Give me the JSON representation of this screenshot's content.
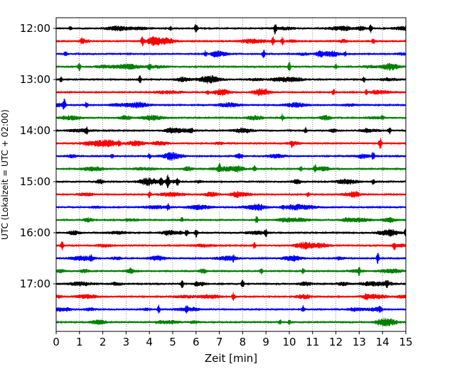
{
  "chart_data": {
    "type": "line",
    "title": "",
    "xlabel": "Zeit  [min]",
    "ylabel": "UTC (Lokalzeit = UTC + 02:00)",
    "xlim": [
      0,
      15
    ],
    "x_ticks": [
      "0",
      "1",
      "2",
      "3",
      "4",
      "5",
      "6",
      "7",
      "8",
      "9",
      "10",
      "11",
      "12",
      "13",
      "14",
      "15"
    ],
    "y_tick_labels": [
      "12:00",
      "13:00",
      "14:00",
      "15:00",
      "16:00",
      "17:00"
    ],
    "grid": "vertical-dotted",
    "colors": [
      "#000000",
      "#ff0000",
      "#0000ff",
      "#008000"
    ],
    "traces": [
      {
        "start": "12:00",
        "color": "#000000",
        "spikes": [
          [
            6.0,
            7
          ],
          [
            9.4,
            8
          ],
          [
            13.5,
            6
          ],
          [
            4.9,
            3
          ],
          [
            0.6,
            3
          ]
        ]
      },
      {
        "start": "12:15",
        "color": "#ff0000",
        "spikes": [
          [
            3.7,
            6
          ],
          [
            9.3,
            6
          ],
          [
            9.7,
            5
          ],
          [
            13.6,
            4
          ],
          [
            1.1,
            3
          ]
        ]
      },
      {
        "start": "12:30",
        "color": "#0000ff",
        "spikes": [
          [
            6.4,
            4
          ],
          [
            8.9,
            6
          ],
          [
            0.4,
            3
          ],
          [
            12.4,
            3
          ]
        ]
      },
      {
        "start": "12:45",
        "color": "#008000",
        "spikes": [
          [
            1.0,
            5
          ],
          [
            4.0,
            4
          ],
          [
            10.0,
            7
          ],
          [
            12.0,
            3
          ]
        ]
      },
      {
        "start": "13:00",
        "color": "#000000",
        "spikes": [
          [
            3.6,
            5
          ],
          [
            0.2,
            4
          ],
          [
            13.2,
            4
          ]
        ]
      },
      {
        "start": "13:15",
        "color": "#ff0000",
        "spikes": [
          [
            11.9,
            4
          ],
          [
            6.5,
            3
          ],
          [
            13.3,
            3
          ]
        ]
      },
      {
        "start": "13:30",
        "color": "#0000ff",
        "spikes": [
          [
            0.35,
            7
          ],
          [
            1.3,
            4
          ]
        ]
      },
      {
        "start": "13:45",
        "color": "#008000",
        "spikes": [
          [
            9.7,
            5
          ],
          [
            14.0,
            3
          ]
        ]
      },
      {
        "start": "14:00",
        "color": "#000000",
        "spikes": [
          [
            1.3,
            4
          ],
          [
            5.8,
            4
          ],
          [
            10.7,
            4
          ],
          [
            14.3,
            5
          ]
        ]
      },
      {
        "start": "14:15",
        "color": "#ff0000",
        "spikes": [
          [
            13.9,
            8
          ],
          [
            10.1,
            3
          ],
          [
            2.7,
            3
          ]
        ]
      },
      {
        "start": "14:30",
        "color": "#0000ff",
        "spikes": [
          [
            4.0,
            4
          ],
          [
            13.6,
            6
          ],
          [
            2.4,
            3
          ]
        ]
      },
      {
        "start": "14:45",
        "color": "#008000",
        "spikes": [
          [
            7.0,
            5
          ],
          [
            8.5,
            4
          ],
          [
            11.1,
            5
          ],
          [
            10.5,
            3
          ]
        ]
      },
      {
        "start": "15:00",
        "color": "#000000",
        "spikes": [
          [
            4.8,
            9
          ],
          [
            4.5,
            6
          ],
          [
            5.2,
            5
          ],
          [
            13.6,
            4
          ]
        ]
      },
      {
        "start": "15:15",
        "color": "#ff0000",
        "spikes": [
          [
            4.0,
            4
          ],
          [
            10.8,
            3
          ]
        ]
      },
      {
        "start": "15:30",
        "color": "#0000ff",
        "spikes": [
          [
            4.8,
            4
          ],
          [
            9.7,
            3
          ]
        ]
      },
      {
        "start": "15:45",
        "color": "#008000",
        "spikes": [
          [
            8.6,
            5
          ],
          [
            5.4,
            3
          ]
        ]
      },
      {
        "start": "16:00",
        "color": "#000000",
        "spikes": [
          [
            6.0,
            6
          ],
          [
            5.6,
            5
          ],
          [
            9.0,
            4
          ],
          [
            15.0,
            5
          ]
        ]
      },
      {
        "start": "16:15",
        "color": "#ff0000",
        "spikes": [
          [
            0.25,
            7
          ],
          [
            8.5,
            4
          ],
          [
            14.5,
            5
          ]
        ]
      },
      {
        "start": "16:30",
        "color": "#0000ff",
        "spikes": [
          [
            13.8,
            7
          ],
          [
            1.5,
            3
          ],
          [
            7.6,
            3
          ]
        ]
      },
      {
        "start": "16:45",
        "color": "#008000",
        "spikes": [
          [
            8.8,
            5
          ],
          [
            10.6,
            4
          ],
          [
            13.0,
            5
          ],
          [
            3.2,
            3
          ]
        ]
      },
      {
        "start": "17:00",
        "color": "#000000",
        "spikes": [
          [
            5.4,
            7
          ],
          [
            8.0,
            5
          ],
          [
            14.2,
            5
          ],
          [
            6.0,
            3
          ]
        ]
      },
      {
        "start": "17:15",
        "color": "#ff0000",
        "spikes": [
          [
            7.6,
            6
          ],
          [
            13.3,
            4
          ]
        ]
      },
      {
        "start": "17:30",
        "color": "#0000ff",
        "spikes": [
          [
            4.4,
            6
          ],
          [
            5.6,
            4
          ],
          [
            10.6,
            5
          ],
          [
            13.9,
            4
          ]
        ]
      },
      {
        "start": "17:45",
        "color": "#008000",
        "spikes": [
          [
            9.6,
            4
          ],
          [
            10.0,
            3
          ]
        ]
      }
    ]
  }
}
